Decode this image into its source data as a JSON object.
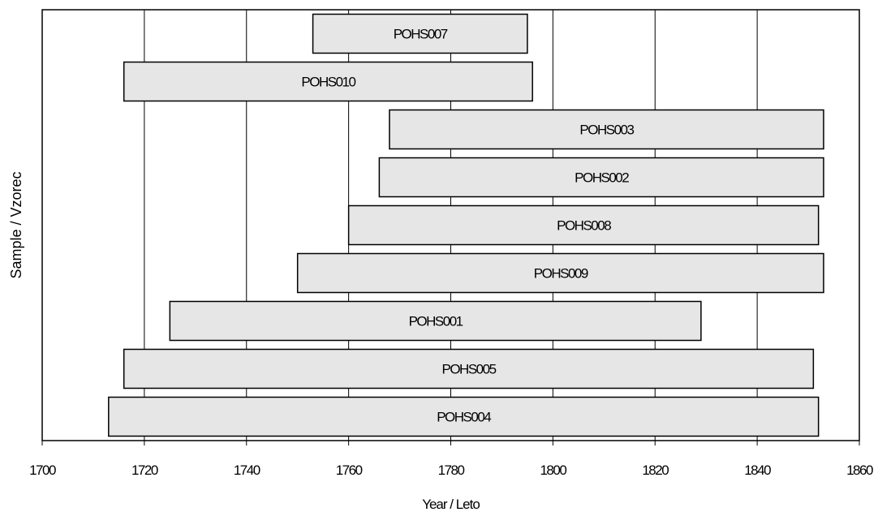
{
  "chart_data": {
    "type": "bar",
    "orientation": "horizontal-range",
    "xlabel": "Year / Leto",
    "ylabel": "Sample / Vzorec",
    "xlim": [
      1700,
      1860
    ],
    "xticks": [
      "1700",
      "1720",
      "1740",
      "1760",
      "1780",
      "1800",
      "1820",
      "1840",
      "1860"
    ],
    "grid": "vertical",
    "legend": "none",
    "bar_fill": "#e6e6e6",
    "bars": [
      {
        "label": "POHS007",
        "start": 1753,
        "end": 1795
      },
      {
        "label": "POHS010",
        "start": 1716,
        "end": 1796
      },
      {
        "label": "POHS003",
        "start": 1768,
        "end": 1853
      },
      {
        "label": "POHS002",
        "start": 1766,
        "end": 1853
      },
      {
        "label": "POHS008",
        "start": 1760,
        "end": 1852
      },
      {
        "label": "POHS009",
        "start": 1750,
        "end": 1853
      },
      {
        "label": "POHS001",
        "start": 1725,
        "end": 1829
      },
      {
        "label": "POHS005",
        "start": 1716,
        "end": 1851
      },
      {
        "label": "POHS004",
        "start": 1713,
        "end": 1852
      }
    ]
  }
}
